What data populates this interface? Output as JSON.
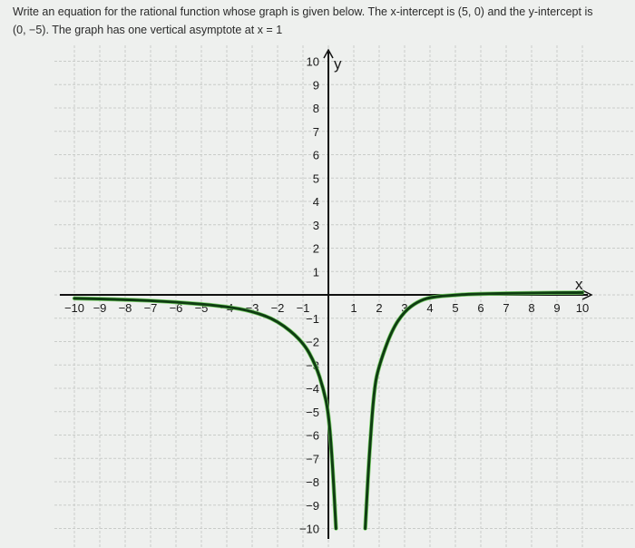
{
  "prompt": {
    "line1": "Write an equation for the rational function whose graph is given below. The x-intercept is (5, 0) and the  y-intercept is",
    "line2": "(0, −5). The graph has one vertical asymptote at x = 1"
  },
  "chart_data": {
    "type": "line",
    "title": "",
    "xlabel": "x",
    "ylabel": "y",
    "xlim": [
      -10,
      10
    ],
    "ylim": [
      -10,
      10
    ],
    "grid": true,
    "x_ticks": [
      -10,
      -9,
      -8,
      -7,
      -6,
      -5,
      -4,
      -3,
      -2,
      -1,
      1,
      2,
      3,
      4,
      5,
      6,
      7,
      8,
      9,
      10
    ],
    "y_ticks": [
      -10,
      -9,
      -8,
      -7,
      -6,
      -5,
      -4,
      -3,
      -2,
      -1,
      1,
      2,
      3,
      4,
      5,
      6,
      7,
      8,
      9,
      10
    ],
    "curve_color": "#0f3d12",
    "series": [
      {
        "points": [
          [
            -10,
            -0.15
          ],
          [
            -8,
            -0.2
          ],
          [
            -6,
            -0.3
          ],
          [
            -4,
            -0.5
          ],
          [
            -3,
            -0.7
          ],
          [
            -2,
            -1.1
          ],
          [
            -1,
            -2.0
          ],
          [
            -0.5,
            -3.0
          ],
          [
            -0.2,
            -4.0
          ],
          [
            0,
            -5
          ],
          [
            0.15,
            -7
          ],
          [
            0.3,
            -10
          ]
        ]
      },
      {
        "points": [
          [
            1.45,
            -10
          ],
          [
            1.6,
            -7
          ],
          [
            1.8,
            -4
          ],
          [
            2,
            -3
          ],
          [
            2.5,
            -1.5
          ],
          [
            3,
            -0.7
          ],
          [
            3.5,
            -0.3
          ],
          [
            4,
            -0.1
          ],
          [
            5,
            0
          ],
          [
            6,
            0.05
          ],
          [
            8,
            0.08
          ],
          [
            10,
            0.1
          ]
        ]
      }
    ]
  }
}
